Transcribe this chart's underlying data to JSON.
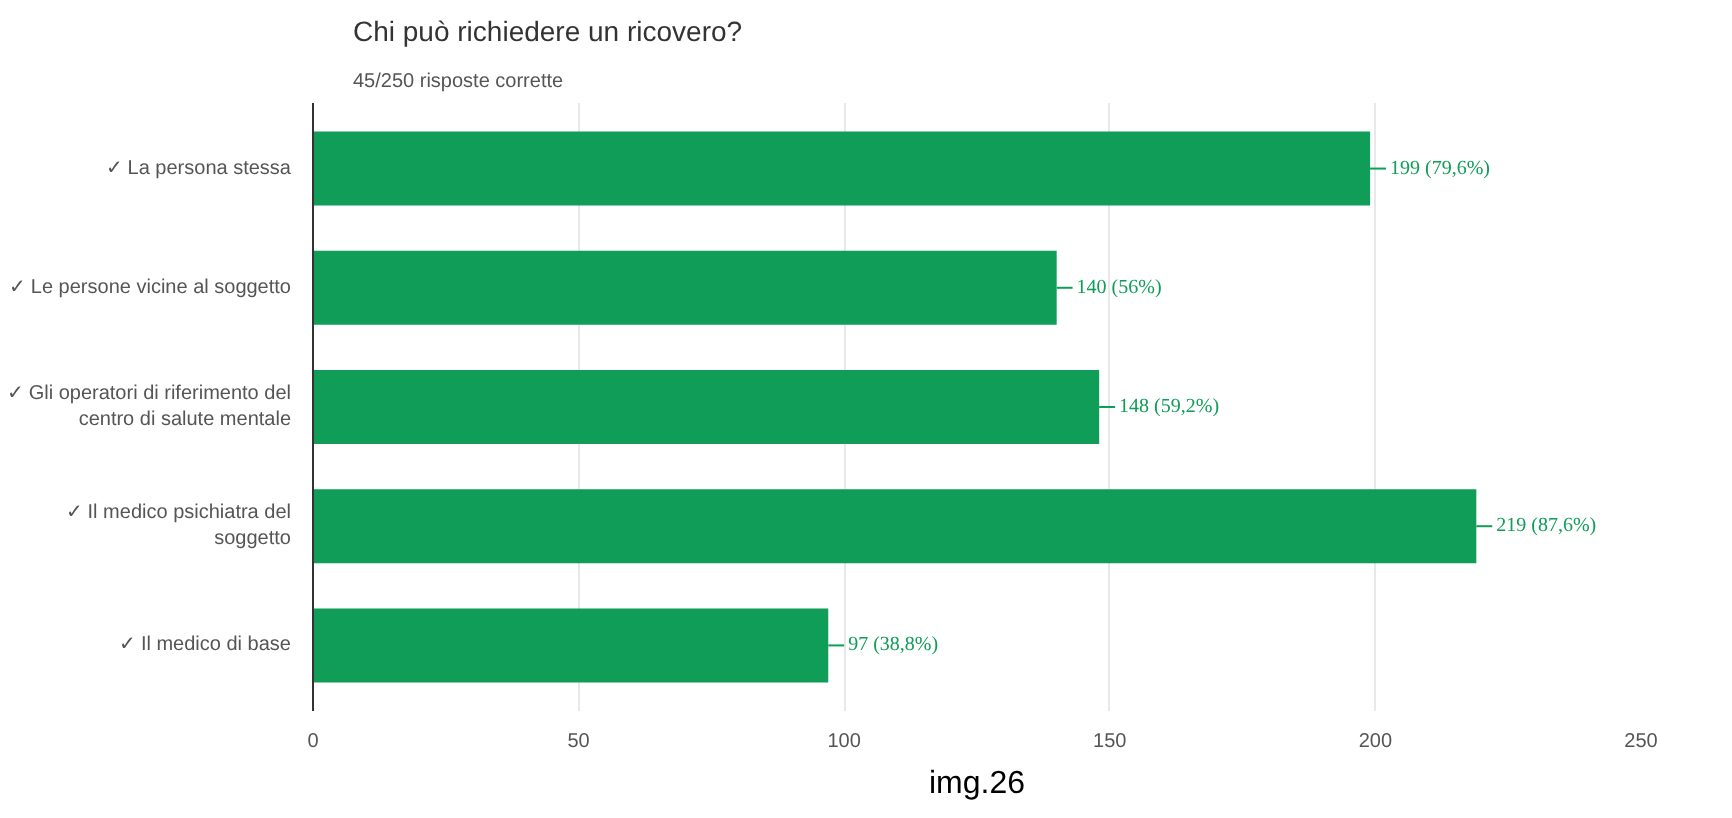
{
  "chart_data": {
    "type": "bar",
    "orientation": "horizontal",
    "title": "Chi può richiedere un ricovero?",
    "subtitle": "45/250 risposte corrette",
    "categories": [
      "✓ La persona stessa",
      "✓ Le persone vicine al soggetto",
      "✓ Gli operatori di riferimento del centro di salute mentale",
      "✓ Il medico psichiatra del soggetto",
      "✓ Il medico di base"
    ],
    "values": [
      199,
      140,
      148,
      219,
      97
    ],
    "value_labels": [
      "199 (79,6%)",
      "140 (56%)",
      "148 (59,2%)",
      "219 (87,6%)",
      "97 (38,8%)"
    ],
    "color": "#0f9d58",
    "xlim": [
      0,
      250
    ],
    "xticks": [
      0,
      50,
      100,
      150,
      200,
      250
    ],
    "grid": "x",
    "annotations": [
      "img.26"
    ]
  }
}
